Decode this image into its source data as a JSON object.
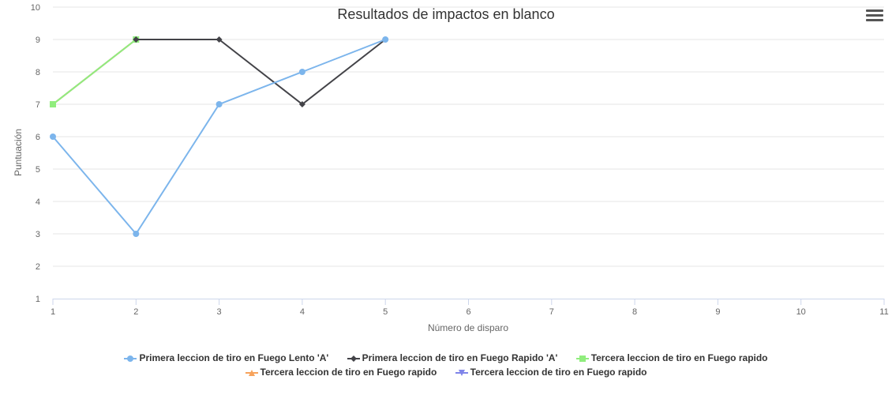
{
  "chart_data": {
    "type": "line",
    "title": "Resultados de impactos en blanco",
    "xlabel": "Número de disparo",
    "ylabel": "Puntuación",
    "xlim": [
      1,
      11
    ],
    "ylim": [
      1,
      10
    ],
    "xticks": [
      "1",
      "2",
      "3",
      "4",
      "5",
      "6",
      "7",
      "8",
      "9",
      "10",
      "11"
    ],
    "yticks": [
      "1",
      "2",
      "3",
      "4",
      "5",
      "6",
      "7",
      "8",
      "9",
      "10"
    ],
    "grid": true,
    "legend_position": "bottom",
    "series": [
      {
        "name": "Primera leccion de tiro en Fuego Lento 'A'",
        "color": "#7cb5ec",
        "marker": "circle",
        "x": [
          1,
          2,
          3,
          4,
          5
        ],
        "y": [
          6,
          3,
          7,
          8,
          9
        ]
      },
      {
        "name": "Primera leccion de tiro en Fuego Rapido 'A'",
        "color": "#434348",
        "marker": "diamond",
        "x": [
          2,
          3,
          4,
          5
        ],
        "y": [
          9,
          9,
          7,
          9
        ]
      },
      {
        "name": "Tercera leccion de tiro en Fuego rapido",
        "color": "#90ed7d",
        "marker": "square",
        "x": [
          1,
          2
        ],
        "y": [
          7,
          9
        ]
      },
      {
        "name": "Tercera leccion de tiro en Fuego rapido",
        "color": "#f7a35c",
        "marker": "triangle",
        "x": [
          1,
          2
        ],
        "y": [
          7,
          9
        ]
      },
      {
        "name": "Tercera leccion de tiro en Fuego rapido",
        "color": "#8085e9",
        "marker": "triangle-down",
        "x": [
          1,
          2
        ],
        "y": [
          7,
          9
        ]
      }
    ]
  },
  "menu": {
    "icon": "hamburger-menu-icon"
  }
}
